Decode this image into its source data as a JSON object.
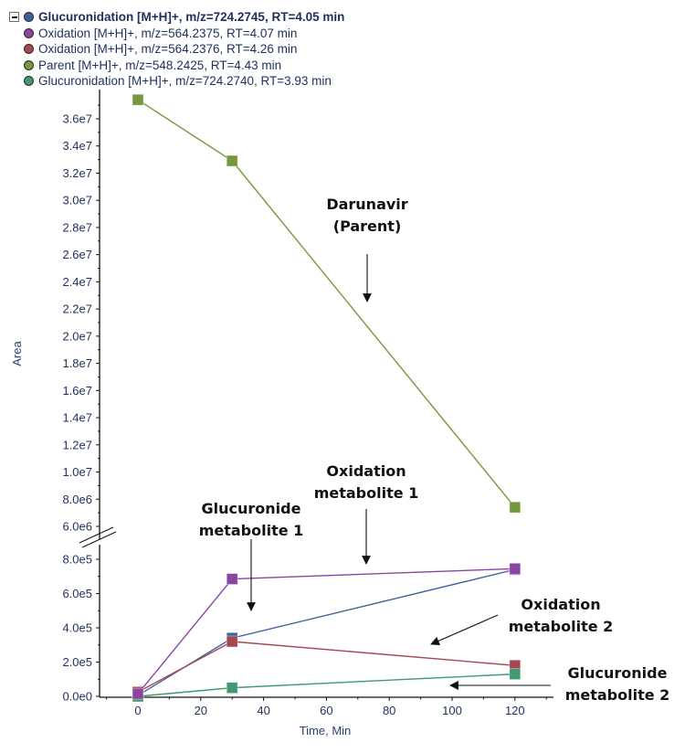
{
  "legend": {
    "collapse_icon": "minus-box-icon",
    "items": [
      {
        "label": "Glucuronidation [M+H]+, m/z=724.2745, RT=4.05 min",
        "color": "#3f5f9e",
        "bold": true
      },
      {
        "label": "Oxidation [M+H]+, m/z=564.2375, RT=4.07 min",
        "color": "#8a45a0",
        "bold": false
      },
      {
        "label": "Oxidation [M+H]+, m/z=564.2376, RT=4.26 min",
        "color": "#a4474f",
        "bold": false
      },
      {
        "label": "Parent [M+H]+, m/z=548.2425, RT=4.43 min",
        "color": "#76973e",
        "bold": false
      },
      {
        "label": "Glucuronidation [M+H]+, m/z=724.2740, RT=3.93 min",
        "color": "#3f9a72",
        "bold": false
      }
    ]
  },
  "chart_data": {
    "type": "line",
    "title": "",
    "xlabel": "Time, Min",
    "ylabel": "Area",
    "x": [
      0,
      30,
      120
    ],
    "xlim": [
      -12,
      132
    ],
    "x_ticks": [
      0,
      20,
      40,
      60,
      80,
      100,
      120
    ],
    "y_axis_break": true,
    "ylim_lower": [
      0,
      800000
    ],
    "ylim_upper": [
      6000000,
      37000000
    ],
    "y_ticks_lower": [
      {
        "value": 0,
        "label": "0.0e0"
      },
      {
        "value": 200000,
        "label": "2.0e5"
      },
      {
        "value": 400000,
        "label": "4.0e5"
      },
      {
        "value": 600000,
        "label": "6.0e5"
      },
      {
        "value": 800000,
        "label": "8.0e5"
      }
    ],
    "y_ticks_upper": [
      {
        "value": 6000000,
        "label": "6.0e6"
      },
      {
        "value": 8000000,
        "label": "8.0e6"
      },
      {
        "value": 10000000,
        "label": "1.0e7"
      },
      {
        "value": 12000000,
        "label": "1.2e7"
      },
      {
        "value": 14000000,
        "label": "1.4e7"
      },
      {
        "value": 16000000,
        "label": "1.6e7"
      },
      {
        "value": 18000000,
        "label": "1.8e7"
      },
      {
        "value": 20000000,
        "label": "2.0e7"
      },
      {
        "value": 22000000,
        "label": "2.2e7"
      },
      {
        "value": 24000000,
        "label": "2.4e7"
      },
      {
        "value": 26000000,
        "label": "2.6e7"
      },
      {
        "value": 28000000,
        "label": "2.8e7"
      },
      {
        "value": 30000000,
        "label": "3.0e7"
      },
      {
        "value": 32000000,
        "label": "3.2e7"
      },
      {
        "value": 34000000,
        "label": "3.4e7"
      },
      {
        "value": 36000000,
        "label": "3.6e7"
      }
    ],
    "grid": false,
    "legend_position": "top-left",
    "series": [
      {
        "name": "Parent [M+H]+, m/z=548.2425, RT=4.43 min",
        "color": "#76973e",
        "values": [
          37400000,
          32900000,
          7400000
        ]
      },
      {
        "name": "Glucuronidation [M+H]+, m/z=724.2745, RT=4.05 min",
        "color": "#3f5f9e",
        "values": [
          5000,
          340000,
          740000
        ]
      },
      {
        "name": "Oxidation [M+H]+, m/z=564.2376, RT=4.26 min",
        "color": "#a4474f",
        "values": [
          25000,
          320000,
          180000
        ]
      },
      {
        "name": "Glucuronidation [M+H]+, m/z=724.2740, RT=3.93 min",
        "color": "#3f9a72",
        "values": [
          0,
          50000,
          130000
        ]
      },
      {
        "name": "Oxidation [M+H]+, m/z=564.2375, RT=4.07 min",
        "color": "#8a45a0",
        "values": [
          15000,
          685000,
          745000
        ]
      }
    ],
    "annotations": [
      {
        "id": "darunavir",
        "lines": [
          "Darunavir",
          "(Parent)"
        ],
        "arrow": "down"
      },
      {
        "id": "oxidation-1",
        "lines": [
          "Oxidation",
          "metabolite 1"
        ],
        "arrow": "down"
      },
      {
        "id": "glucuronide-1",
        "lines": [
          "Glucuronide",
          "metabolite 1"
        ],
        "arrow": "down"
      },
      {
        "id": "oxidation-2",
        "lines": [
          "Oxidation",
          "metabolite 2"
        ],
        "arrow": "down-left"
      },
      {
        "id": "glucuronide-2",
        "lines": [
          "Glucuronide",
          "metabolite 2"
        ],
        "arrow": "left"
      }
    ]
  }
}
